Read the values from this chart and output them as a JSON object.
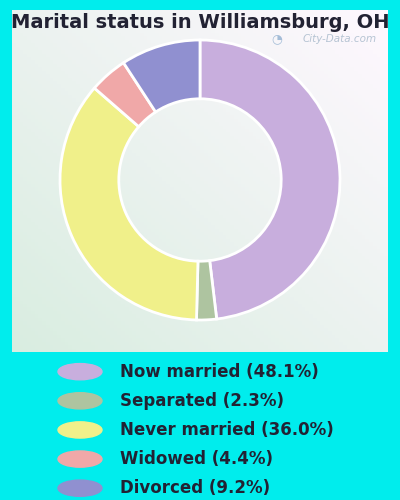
{
  "title": "Marital status in Williamsburg, OH",
  "slices": [
    48.1,
    2.3,
    36.0,
    4.4,
    9.2
  ],
  "labels": [
    "Now married (48.1%)",
    "Separated (2.3%)",
    "Never married (36.0%)",
    "Widowed (4.4%)",
    "Divorced (9.2%)"
  ],
  "colors": [
    "#c8aedd",
    "#aec4a0",
    "#f0f08a",
    "#f0a8a8",
    "#9090d0"
  ],
  "background_color": "#00eded",
  "title_fontsize": 14,
  "legend_fontsize": 12,
  "watermark": "City-Data.com"
}
